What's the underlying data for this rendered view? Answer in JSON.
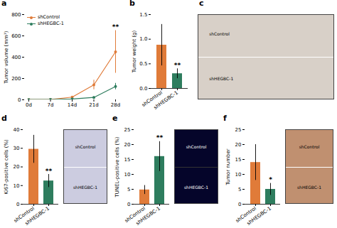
{
  "chart_data": [
    {
      "type": "line",
      "title": "a",
      "x": [
        0,
        7,
        14,
        21,
        28
      ],
      "xlim": [
        0,
        28
      ],
      "xticks": [
        {
          "value": 0,
          "label": "0d"
        },
        {
          "value": 7,
          "label": "7d"
        },
        {
          "value": 14,
          "label": "14d"
        },
        {
          "value": 21,
          "label": "21d"
        },
        {
          "value": 28,
          "label": "28d"
        }
      ],
      "ylabel": "Tumor volume (mm³)",
      "ylim": [
        0,
        800
      ],
      "yticks": [
        0,
        200,
        400,
        600,
        800
      ],
      "series": [
        {
          "name": "shControl",
          "color": "#E07B39",
          "marker": "o",
          "values": [
            2,
            3,
            25,
            140,
            450
          ],
          "errors": [
            1,
            1,
            8,
            45,
            200
          ]
        },
        {
          "name": "shHEGBC-1",
          "color": "#2E7D5E",
          "marker": "o",
          "values": [
            2,
            3,
            8,
            22,
            125
          ],
          "errors": [
            1,
            1,
            3,
            8,
            30
          ]
        }
      ],
      "legend": "upper left",
      "annotations": [
        {
          "text": "**",
          "x": 28
        }
      ]
    },
    {
      "type": "bar",
      "title": "b",
      "categories": [
        "shControl",
        "shHEGBC-1"
      ],
      "values": [
        0.88,
        0.3
      ],
      "errors": [
        0.42,
        0.1
      ],
      "colors": [
        "#E07B39",
        "#2E7D5E"
      ],
      "ylabel": "Tumor weight (g)",
      "ylim": [
        0,
        1.5
      ],
      "yticks": [
        {
          "value": 0,
          "label": "0.0"
        },
        0.5,
        {
          "value": 1,
          "label": "1.0"
        },
        1.5
      ],
      "annotations": [
        {
          "text": "**",
          "category": "shHEGBC-1"
        }
      ]
    },
    {
      "type": "image",
      "title": "c",
      "color": "#d8d0c8",
      "labels": [
        "shControl",
        "shHEGBC-1"
      ]
    },
    {
      "type": "bar",
      "title": "d",
      "categories": [
        "shControl",
        "shHEGBC-1"
      ],
      "values": [
        29.5,
        12.5
      ],
      "errors": [
        7.5,
        3.5
      ],
      "colors": [
        "#E07B39",
        "#2E7D5E"
      ],
      "ylabel": "Ki67-positive cells (%)",
      "ylim": [
        0,
        40
      ],
      "yticks": [
        0,
        10,
        20,
        30,
        40
      ],
      "annotations": [
        {
          "text": "**",
          "category": "shHEGBC-1"
        }
      ]
    },
    {
      "type": "image",
      "color": "#cccce0",
      "labels": [
        "shControl",
        "shHEGBC-1"
      ]
    },
    {
      "type": "bar",
      "title": "e",
      "categories": [
        "shControl",
        "shHEGBC-1"
      ],
      "values": [
        4.8,
        16.0
      ],
      "errors": [
        1.5,
        5.0
      ],
      "colors": [
        "#E07B39",
        "#2E7D5E"
      ],
      "ylabel": "TUNEL-positive cells (%)",
      "ylim": [
        0,
        25
      ],
      "yticks": [
        0,
        5,
        10,
        15,
        20,
        25
      ],
      "annotations": [
        {
          "text": "**",
          "category": "shHEGBC-1"
        }
      ]
    },
    {
      "type": "image",
      "color": "#05052a",
      "labels": [
        "shControl",
        "shHEGBC-1"
      ]
    },
    {
      "type": "bar",
      "title": "f",
      "categories": [
        "shControl",
        "shHEGBC-1"
      ],
      "values": [
        14.0,
        5.0
      ],
      "errors": [
        6.0,
        2.0
      ],
      "colors": [
        "#E07B39",
        "#2E7D5E"
      ],
      "ylabel": "Tumor number",
      "ylim": [
        0,
        25
      ],
      "yticks": [
        0,
        5,
        10,
        15,
        20,
        25
      ],
      "annotations": [
        {
          "text": "*",
          "category": "shHEGBC-1"
        }
      ]
    },
    {
      "type": "image",
      "color": "#c09070",
      "labels": [
        "shControl",
        "shHEGBC-1"
      ]
    }
  ]
}
